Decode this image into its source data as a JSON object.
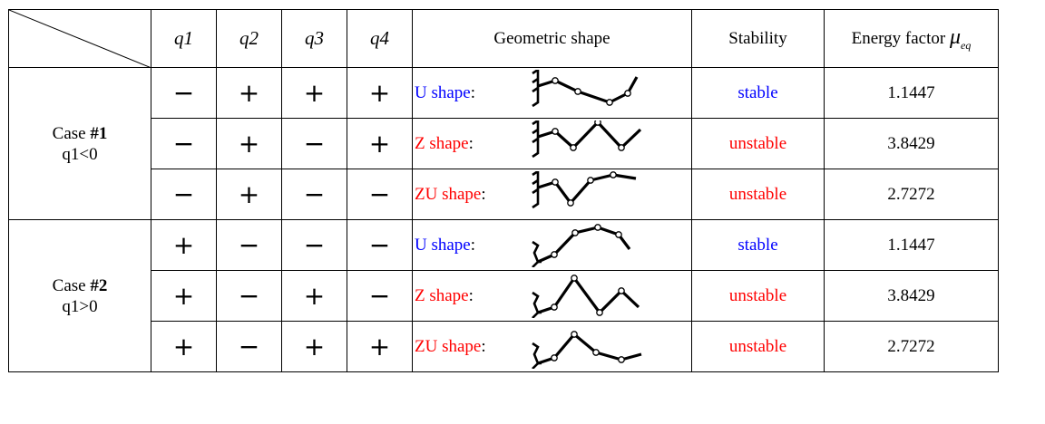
{
  "header": {
    "q1": "q1",
    "q2": "q2",
    "q3": "q3",
    "q4": "q4",
    "geometric_shape": "Geometric shape",
    "stability": "Stability",
    "energy_factor": "Energy factor",
    "mu_symbol": "μ",
    "mu_sub": "eq"
  },
  "cases": [
    {
      "name": "Case #1",
      "name_prefix": "Case ",
      "name_num": "#1",
      "condition": "q1<0",
      "rows": [
        {
          "signs": [
            "−",
            "+",
            "+",
            "+"
          ],
          "shape": "U shape",
          "shape_color": "#0000ff",
          "stability": "stable",
          "stability_color": "#0000ff",
          "energy": "1.1447"
        },
        {
          "signs": [
            "−",
            "+",
            "−",
            "+"
          ],
          "shape": "Z shape",
          "shape_color": "#ff0000",
          "stability": "unstable",
          "stability_color": "#ff0000",
          "energy": "3.8429"
        },
        {
          "signs": [
            "−",
            "+",
            "−",
            "−"
          ],
          "shape": "ZU shape",
          "shape_color": "#ff0000",
          "stability": "unstable",
          "stability_color": "#ff0000",
          "energy": "2.7272"
        }
      ]
    },
    {
      "name": "Case #2",
      "name_prefix": "Case ",
      "name_num": "#2",
      "condition": "q1>0",
      "rows": [
        {
          "signs": [
            "+",
            "−",
            "−",
            "−"
          ],
          "shape": "U shape",
          "shape_color": "#0000ff",
          "stability": "stable",
          "stability_color": "#0000ff",
          "energy": "1.1447"
        },
        {
          "signs": [
            "+",
            "−",
            "+",
            "−"
          ],
          "shape": "Z shape",
          "shape_color": "#ff0000",
          "stability": "unstable",
          "stability_color": "#ff0000",
          "energy": "3.8429"
        },
        {
          "signs": [
            "+",
            "−",
            "+",
            "+"
          ],
          "shape": "ZU shape",
          "shape_color": "#ff0000",
          "stability": "unstable",
          "stability_color": "#ff0000",
          "energy": "2.7272"
        }
      ]
    }
  ],
  "shape_label_suffix": ":"
}
